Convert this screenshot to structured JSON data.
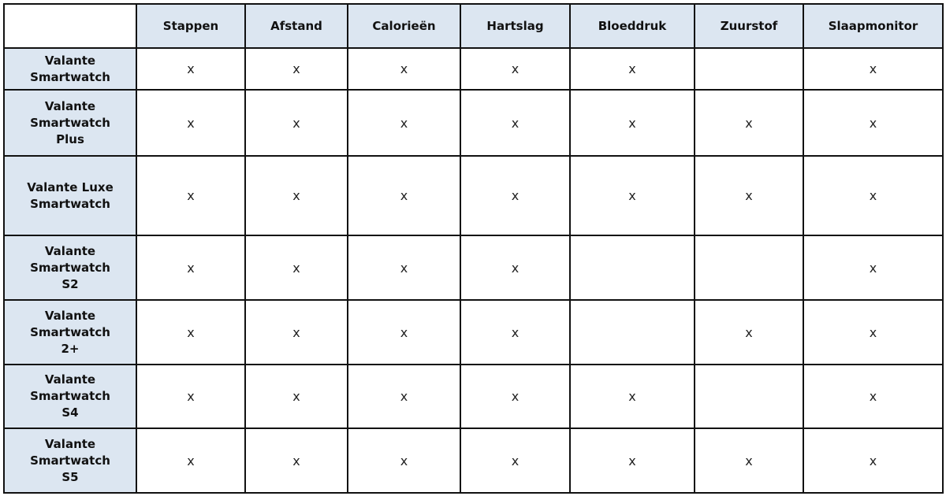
{
  "columns": [
    "Stappen",
    "Afstand",
    "Calorieën",
    "Hartslag",
    "Bloeddruk",
    "Zuurstof",
    "Slaapmonitor"
  ],
  "mark": "x",
  "header_color": "#dce6f1",
  "rows": [
    {
      "name": [
        "Valante",
        "Smartwatch"
      ],
      "cells": [
        true,
        true,
        true,
        true,
        true,
        false,
        true
      ]
    },
    {
      "name": [
        "Valante",
        "Smartwatch",
        "Plus"
      ],
      "cells": [
        true,
        true,
        true,
        true,
        true,
        true,
        true
      ]
    },
    {
      "name": [
        "Valante Luxe",
        "Smartwatch"
      ],
      "cells": [
        true,
        true,
        true,
        true,
        true,
        true,
        true
      ]
    },
    {
      "name": [
        "Valante",
        "Smartwatch",
        "S2"
      ],
      "cells": [
        true,
        true,
        true,
        true,
        false,
        false,
        true
      ]
    },
    {
      "name": [
        "Valante",
        "Smartwatch",
        "2+"
      ],
      "cells": [
        true,
        true,
        true,
        true,
        false,
        true,
        true
      ]
    },
    {
      "name": [
        "Valante",
        "Smartwatch",
        "S4"
      ],
      "cells": [
        true,
        true,
        true,
        true,
        true,
        false,
        true
      ]
    },
    {
      "name": [
        "Valante",
        "Smartwatch",
        "S5"
      ],
      "cells": [
        true,
        true,
        true,
        true,
        true,
        true,
        true
      ]
    }
  ]
}
